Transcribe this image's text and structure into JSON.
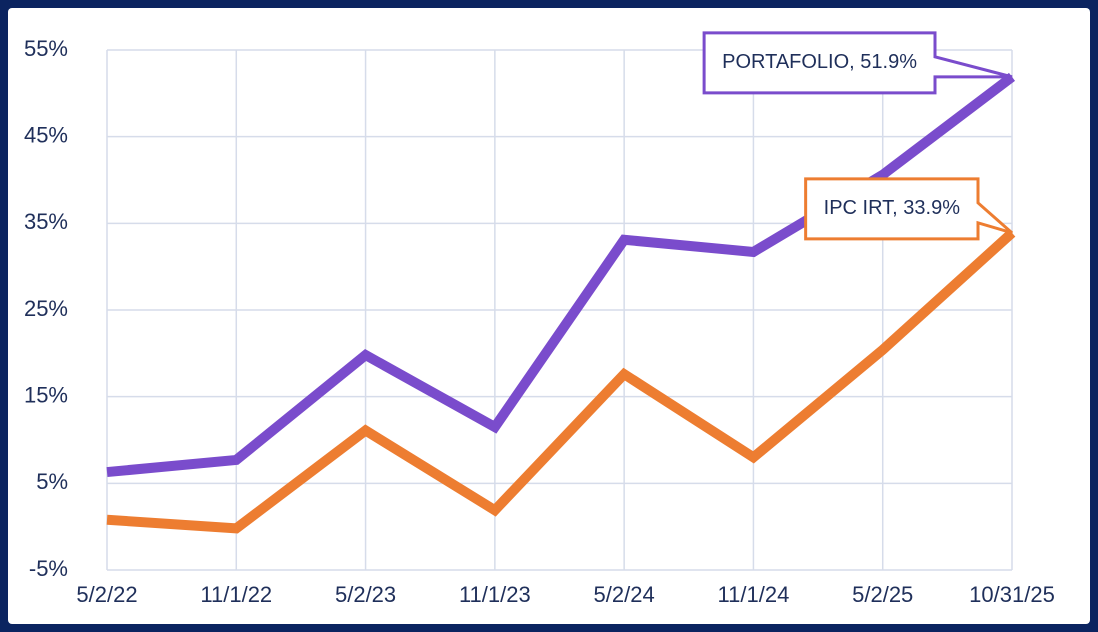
{
  "chart_data": {
    "type": "line",
    "categories": [
      "5/2/22",
      "11/1/22",
      "5/2/23",
      "11/1/23",
      "5/2/24",
      "11/1/24",
      "5/2/25",
      "10/31/25"
    ],
    "series": [
      {
        "name": "PORTAFOLIO",
        "color": "#7a4ccc",
        "values": [
          6.3,
          7.7,
          19.8,
          11.5,
          33.1,
          31.7,
          40.6,
          51.9
        ],
        "value_labels": [
          null,
          null,
          null,
          null,
          null,
          null,
          null,
          "PORTAFOLIO, 51.9%"
        ]
      },
      {
        "name": "IPC IRT",
        "color": "#ed7d31",
        "values": [
          0.8,
          -0.2,
          11.1,
          1.9,
          17.6,
          8.0,
          20.4,
          33.9
        ],
        "value_labels": [
          null,
          null,
          null,
          null,
          null,
          null,
          null,
          "IPC IRT, 33.9%"
        ]
      }
    ],
    "ylim": [
      -5,
      55
    ],
    "yticks": [
      {
        "value": -5,
        "label": "-5%"
      },
      {
        "value": 5,
        "label": "5%"
      },
      {
        "value": 15,
        "label": "15%"
      },
      {
        "value": 25,
        "label": "25%"
      },
      {
        "value": 35,
        "label": "35%"
      },
      {
        "value": 45,
        "label": "45%"
      },
      {
        "value": 55,
        "label": "55%"
      }
    ],
    "grid": true
  }
}
